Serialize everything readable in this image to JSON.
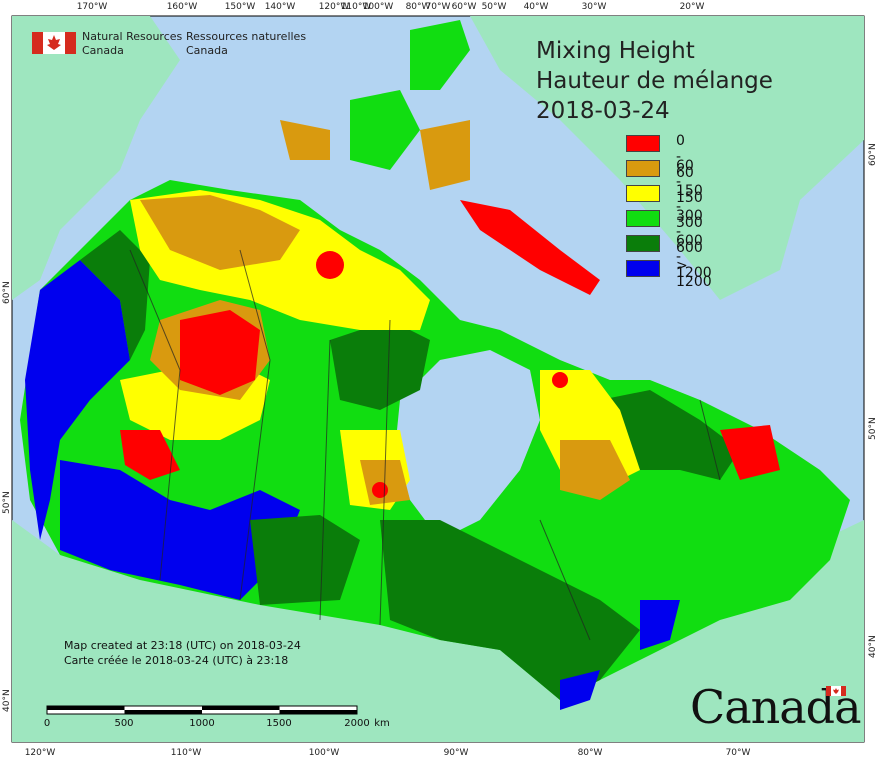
{
  "header": {
    "agency_en_line1": "Natural Resources",
    "agency_en_line2": "Canada",
    "agency_fr_line1": "Ressources naturelles",
    "agency_fr_line2": "Canada"
  },
  "map": {
    "title_en": "Mixing Height",
    "title_fr": "Hauteur de mélange",
    "date": "2018-03-24",
    "legend": [
      {
        "label": "0 - 60",
        "color": "#ff0000"
      },
      {
        "label": "60 - 150",
        "color": "#d99a0f"
      },
      {
        "label": "150 - 300",
        "color": "#ffff00"
      },
      {
        "label": "300 - 600",
        "color": "#11dd11"
      },
      {
        "label": "600 - 1200",
        "color": "#0a7d0a"
      },
      {
        "label": "> 1200",
        "color": "#0000ee"
      }
    ],
    "longitude_ticks_top": [
      "170°W",
      "160°W",
      "150°W",
      "140°W",
      "120°W",
      "110°W",
      "100°W",
      "80°W",
      "70°W",
      "60°W",
      "50°W",
      "40°W",
      "30°W",
      "20°W"
    ],
    "longitude_ticks_bottom": [
      "120°W",
      "110°W",
      "100°W",
      "90°W",
      "80°W",
      "70°W"
    ],
    "latitude_ticks_left": [
      "60°N",
      "50°N",
      "40°N"
    ],
    "latitude_ticks_right": [
      "60°N",
      "50°N",
      "40°N"
    ],
    "created_en": "Map created at 23:18 (UTC) on 2018-03-24",
    "created_fr": "Carte créée le 2018-03-24 (UTC) à 23:18",
    "scale_labels": [
      "0",
      "500",
      "1000",
      "1500",
      "2000",
      "km"
    ],
    "wordmark": "Canada",
    "colors": {
      "ocean": "#b3d4f2",
      "land_outside": "#9ee6bf",
      "border": "#222222"
    }
  }
}
